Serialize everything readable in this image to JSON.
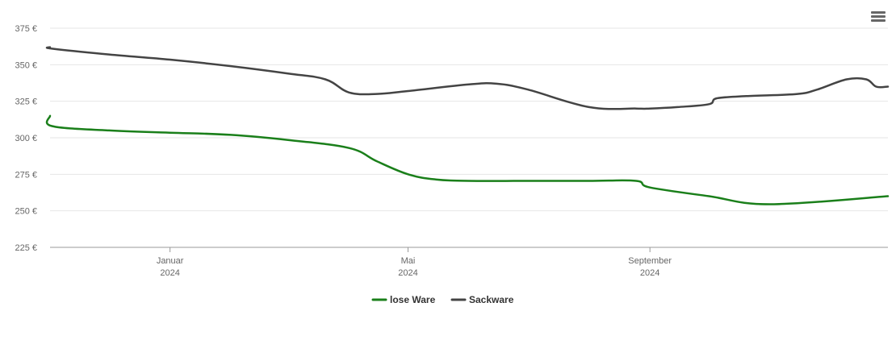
{
  "chart_data": {
    "type": "line",
    "title": "",
    "xlabel": "",
    "ylabel": "",
    "ylim": [
      225,
      375
    ],
    "y_ticks": [
      225,
      250,
      275,
      300,
      325,
      350,
      375
    ],
    "y_tick_suffix": " €",
    "grid": true,
    "legend_placement": "bottom-center",
    "x_domain": [
      "2023-11-01",
      "2024-12-31"
    ],
    "x_ticks": [
      {
        "date": "2024-01-01",
        "month": "Januar",
        "year": "2024"
      },
      {
        "date": "2024-05-01",
        "month": "Mai",
        "year": "2024"
      },
      {
        "date": "2024-09-01",
        "month": "September",
        "year": "2024"
      }
    ],
    "series": [
      {
        "name": "lose Ware",
        "color": "#1a7f1a",
        "points": [
          [
            "2023-11-01",
            315
          ],
          [
            "2023-11-02",
            308
          ],
          [
            "2023-12-01",
            305
          ],
          [
            "2024-01-01",
            303.5
          ],
          [
            "2024-02-01",
            302
          ],
          [
            "2024-03-01",
            298.5
          ],
          [
            "2024-04-01",
            293
          ],
          [
            "2024-04-15",
            284
          ],
          [
            "2024-05-01",
            275
          ],
          [
            "2024-05-15",
            271.5
          ],
          [
            "2024-06-01",
            270.5
          ],
          [
            "2024-07-01",
            270.5
          ],
          [
            "2024-08-01",
            270.5
          ],
          [
            "2024-08-25",
            270.5
          ],
          [
            "2024-09-01",
            266
          ],
          [
            "2024-10-01",
            260
          ],
          [
            "2024-11-01",
            254.5
          ],
          [
            "2024-12-31",
            260
          ]
        ]
      },
      {
        "name": "Sackware",
        "color": "#444444",
        "points": [
          [
            "2023-11-01",
            362
          ],
          [
            "2023-11-02",
            361
          ],
          [
            "2023-12-01",
            357
          ],
          [
            "2024-01-01",
            353.5
          ],
          [
            "2024-02-01",
            349
          ],
          [
            "2024-03-01",
            344
          ],
          [
            "2024-03-20",
            340
          ],
          [
            "2024-04-01",
            331
          ],
          [
            "2024-04-15",
            330
          ],
          [
            "2024-05-01",
            332
          ],
          [
            "2024-06-01",
            336.5
          ],
          [
            "2024-06-15",
            337
          ],
          [
            "2024-07-01",
            333
          ],
          [
            "2024-08-01",
            321
          ],
          [
            "2024-08-25",
            320
          ],
          [
            "2024-09-01",
            320
          ],
          [
            "2024-09-15",
            321
          ],
          [
            "2024-10-01",
            323
          ],
          [
            "2024-10-05",
            327
          ],
          [
            "2024-10-20",
            328.5
          ],
          [
            "2024-11-15",
            330
          ],
          [
            "2024-11-25",
            333
          ],
          [
            "2024-12-10",
            340
          ],
          [
            "2024-12-20",
            340
          ],
          [
            "2024-12-25",
            335
          ],
          [
            "2024-12-31",
            335
          ]
        ]
      }
    ]
  }
}
